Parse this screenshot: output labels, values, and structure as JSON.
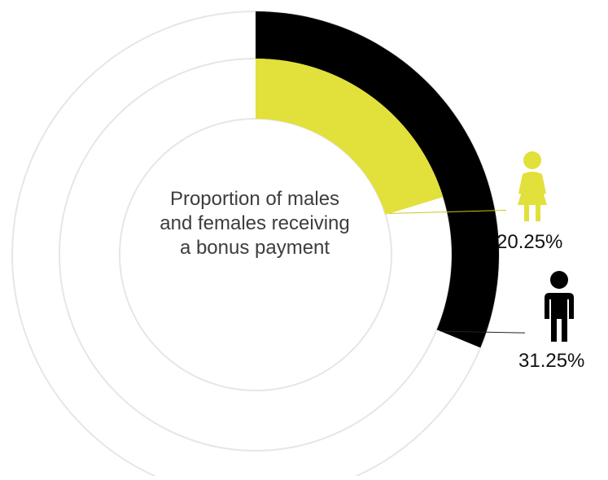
{
  "chart_data": {
    "type": "radial-bar",
    "title": [
      "Proportion of males",
      "and females receiving",
      "a bonus payment"
    ],
    "series": [
      {
        "name": "female",
        "value": 20.25,
        "label": "20.25%",
        "color": "#e2e03a",
        "icon": "female-figure-icon"
      },
      {
        "name": "male",
        "value": 31.25,
        "label": "31.25%",
        "color": "#000000",
        "icon": "male-figure-icon"
      }
    ],
    "max": 100,
    "track_color": "#e6e6e6"
  }
}
